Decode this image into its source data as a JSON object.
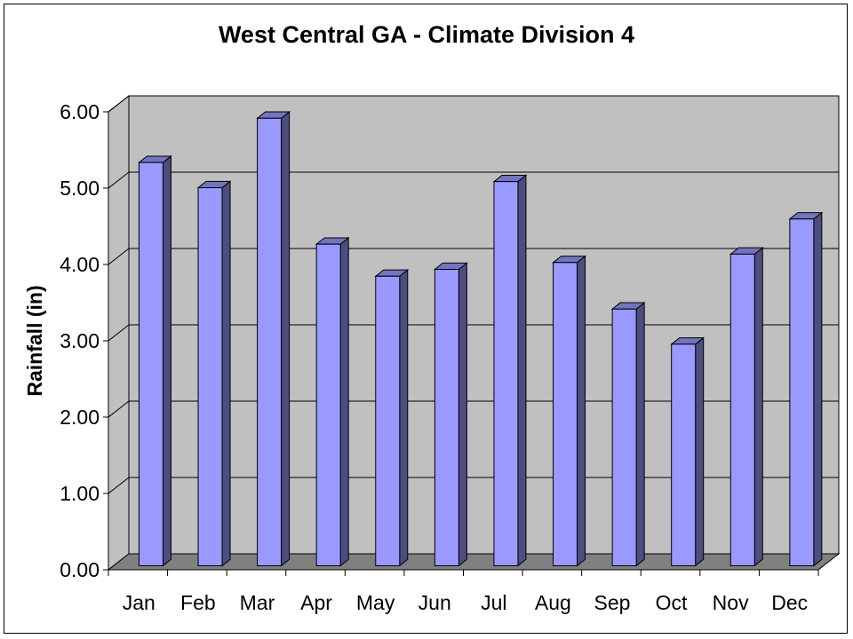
{
  "chart_data": {
    "type": "bar",
    "title": "West Central GA - Climate Division 4",
    "xlabel": "",
    "ylabel": "Rainfall (in)",
    "categories": [
      "Jan",
      "Feb",
      "Mar",
      "Apr",
      "May",
      "Jun",
      "Jul",
      "Aug",
      "Sep",
      "Oct",
      "Nov",
      "Dec"
    ],
    "values": [
      5.21,
      4.88,
      5.79,
      4.14,
      3.72,
      3.81,
      4.96,
      3.9,
      3.29,
      2.83,
      4.01,
      4.47
    ],
    "ylim": [
      0,
      6
    ],
    "yticks": [
      "0.00",
      "1.00",
      "2.00",
      "3.00",
      "4.00",
      "5.00",
      "6.00"
    ],
    "grid": true,
    "style": "3d",
    "colors": {
      "bar_front": "#9999ff",
      "bar_side": "#4d4d80",
      "bar_top": "#7373bf",
      "back_wall": "#c0c0c0",
      "side_wall": "#c0c0c0",
      "floor": "#808080"
    }
  }
}
